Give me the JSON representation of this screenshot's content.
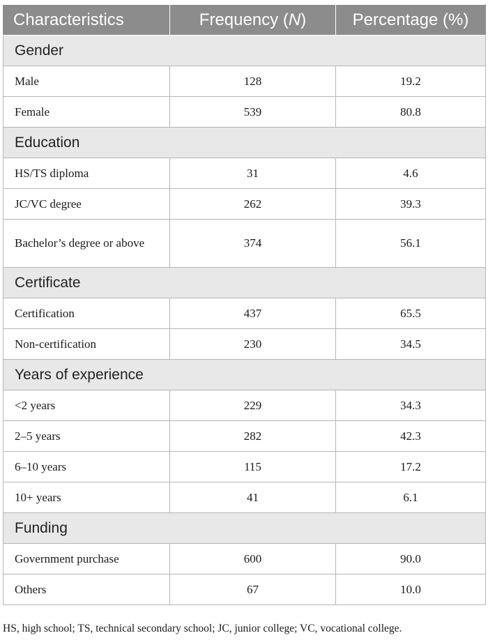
{
  "header": {
    "col1": "Characteristics",
    "col2_prefix": "Frequency (",
    "col2_var": "N",
    "col2_suffix": ")",
    "col3": "Percentage (%)"
  },
  "groups": [
    {
      "title": "Gender",
      "rows": [
        {
          "label": "Male",
          "n": "128",
          "pct": "19.2"
        },
        {
          "label": "Female",
          "n": "539",
          "pct": "80.8"
        }
      ]
    },
    {
      "title": "Education",
      "rows": [
        {
          "label": "HS/TS diploma",
          "n": "31",
          "pct": "4.6"
        },
        {
          "label": "JC/VC degree",
          "n": "262",
          "pct": "39.3"
        },
        {
          "label": "Bachelor’s degree or above",
          "n": "374",
          "pct": "56.1"
        }
      ]
    },
    {
      "title": "Certificate",
      "rows": [
        {
          "label": "Certification",
          "n": "437",
          "pct": "65.5"
        },
        {
          "label": "Non-certification",
          "n": "230",
          "pct": "34.5"
        }
      ]
    },
    {
      "title": "Years of experience",
      "rows": [
        {
          "label": "<2 years",
          "n": "229",
          "pct": "34.3"
        },
        {
          "label": "2–5 years",
          "n": "282",
          "pct": "42.3"
        },
        {
          "label": "6–10 years",
          "n": "115",
          "pct": "17.2"
        },
        {
          "label": "10+ years",
          "n": "41",
          "pct": "6.1"
        }
      ]
    },
    {
      "title": "Funding",
      "rows": [
        {
          "label": "Government purchase",
          "n": "600",
          "pct": "90.0"
        },
        {
          "label": "Others",
          "n": "67",
          "pct": "10.0"
        }
      ]
    }
  ],
  "footnote": "HS, high school; TS, technical secondary school; JC, junior college; VC, vocational college."
}
